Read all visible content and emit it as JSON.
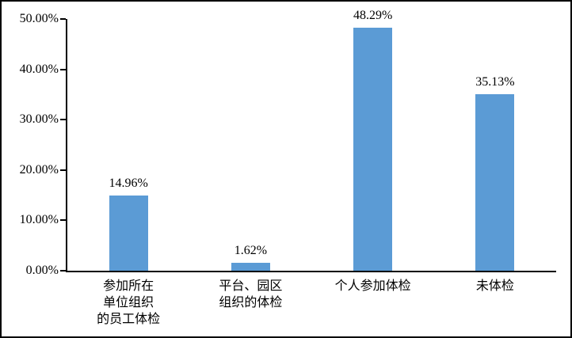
{
  "chart_data": {
    "type": "bar",
    "title": "",
    "xlabel": "",
    "ylabel": "",
    "categories": [
      "参加所在\n单位组织\n的员工体检",
      "平台、园区\n组织的体检",
      "个人参加体检",
      "未体检"
    ],
    "values": [
      14.96,
      1.62,
      48.29,
      35.13
    ],
    "data_labels": [
      "14.96%",
      "1.62%",
      "48.29%",
      "35.13%"
    ],
    "y_ticks": [
      {
        "value": 0,
        "label": "0.00%"
      },
      {
        "value": 10,
        "label": "10.00%"
      },
      {
        "value": 20,
        "label": "20.00%"
      },
      {
        "value": 30,
        "label": "30.00%"
      },
      {
        "value": 40,
        "label": "40.00%"
      },
      {
        "value": 50,
        "label": "50.00%"
      }
    ],
    "ylim": [
      0,
      50
    ],
    "grid": "off",
    "legend": "none",
    "colors": {
      "bar_fill": "#5B9BD5",
      "axis": "#000000",
      "text": "#000000",
      "frame_border": "#000000",
      "background": "#ffffff"
    }
  }
}
